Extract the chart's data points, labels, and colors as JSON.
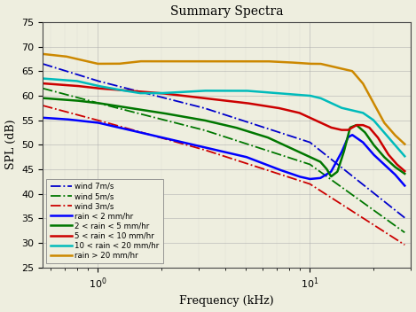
{
  "title": "Summary Spectra",
  "xlabel": "Frequency (kHz)",
  "ylabel": "SPL (dB)",
  "ylim": [
    25,
    75
  ],
  "yticks": [
    25,
    30,
    35,
    40,
    45,
    50,
    55,
    60,
    65,
    70,
    75
  ],
  "xticks": [
    1,
    10
  ],
  "xlim": [
    0.55,
    30
  ],
  "background_color": "#eeeedf",
  "series": [
    {
      "label": "wind 7m/s",
      "color": "#0000cc",
      "linestyle": "-.",
      "linewidth": 1.3
    },
    {
      "label": "wind 5m/s",
      "color": "#007700",
      "linestyle": "-.",
      "linewidth": 1.3
    },
    {
      "label": "wind 3m/s",
      "color": "#cc0000",
      "linestyle": "-.",
      "linewidth": 1.3
    },
    {
      "label": "rain < 2 mm/hr",
      "color": "#0000ff",
      "linestyle": "-",
      "linewidth": 1.8
    },
    {
      "label": "2 < rain < 5 mm/hr",
      "color": "#007700",
      "linestyle": "-",
      "linewidth": 1.8
    },
    {
      "label": "5 < rain < 10 mm/hr",
      "color": "#cc0000",
      "linestyle": "-",
      "linewidth": 1.8
    },
    {
      "label": "10 < rain < 20 mm/hr",
      "color": "#00bbbb",
      "linestyle": "-",
      "linewidth": 1.8
    },
    {
      "label": "rain > 20 mm/hr",
      "color": "#cc8800",
      "linestyle": "-",
      "linewidth": 1.8
    }
  ]
}
